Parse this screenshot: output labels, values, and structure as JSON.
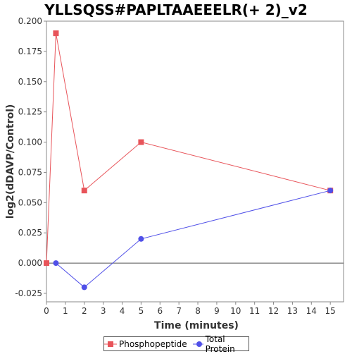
{
  "chart_data": {
    "type": "line",
    "title": "YLLSQSS#PAPLTAAEEELR(+ 2)_v2",
    "xlabel": "Time (minutes)",
    "ylabel": "log2(dDAVP/Control)",
    "xlim": [
      0,
      15.7
    ],
    "ylim": [
      -0.032,
      0.2
    ],
    "x_ticks": [
      0,
      1,
      2,
      3,
      4,
      5,
      6,
      7,
      8,
      9,
      10,
      11,
      12,
      13,
      14,
      15
    ],
    "y_ticks": [
      -0.025,
      0.0,
      0.025,
      0.05,
      0.075,
      0.1,
      0.125,
      0.15,
      0.175,
      0.2
    ],
    "y_tick_labels": [
      "-0.025",
      "0.000",
      "0.025",
      "0.050",
      "0.075",
      "0.100",
      "0.125",
      "0.150",
      "0.175",
      "0.200"
    ],
    "zero_line": true,
    "grid": false,
    "legend_position": "bottom",
    "series": [
      {
        "name": "Phosphopeptide",
        "color": "#e8545a",
        "marker": "square",
        "x": [
          0,
          0.5,
          2,
          5,
          15
        ],
        "y": [
          0.0,
          0.19,
          0.06,
          0.1,
          0.06
        ]
      },
      {
        "name": "Total Protein",
        "color": "#5050e8",
        "marker": "circle",
        "x": [
          0.5,
          2,
          5,
          15
        ],
        "y": [
          0.0,
          -0.02,
          0.02,
          0.06
        ]
      }
    ]
  }
}
